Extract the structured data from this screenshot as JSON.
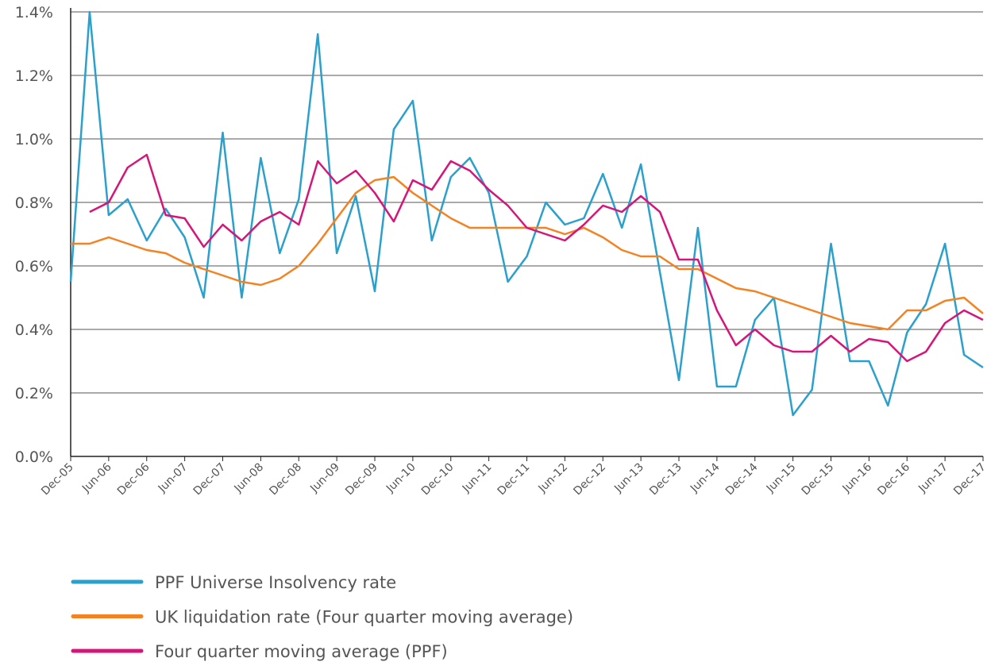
{
  "chart_data": {
    "type": "line",
    "categories": [
      "Dec-05",
      null,
      "Jun-06",
      null,
      "Dec-06",
      null,
      "Jun-07",
      null,
      "Dec-07",
      null,
      "Jun-08",
      null,
      "Dec-08",
      null,
      "Jun-09",
      null,
      "Dec-09",
      null,
      "Jun-10",
      null,
      "Dec-10",
      null,
      "Jun-11",
      null,
      "Dec-11",
      null,
      "Jun-12",
      null,
      "Dec-12",
      null,
      "Jun-13",
      null,
      "Dec-13",
      null,
      "Jun-14",
      null,
      "Dec-14",
      null,
      "Jun-15",
      null,
      "Dec-15",
      null,
      "Jun-16",
      null,
      "Dec-16",
      null,
      "Jun-17",
      null,
      "Dec-17"
    ],
    "series": [
      {
        "name": "PPF Universe Insolvency rate",
        "color": "#2aa0cc",
        "values": [
          0.55,
          1.4,
          0.76,
          0.81,
          0.68,
          0.78,
          0.69,
          0.5,
          1.02,
          0.5,
          0.94,
          0.64,
          0.81,
          1.33,
          0.64,
          0.82,
          0.52,
          1.03,
          1.12,
          0.68,
          0.88,
          0.94,
          0.83,
          0.55,
          0.63,
          0.8,
          0.73,
          0.75,
          0.89,
          0.72,
          0.92,
          0.58,
          0.24,
          0.72,
          0.22,
          0.22,
          0.43,
          0.5,
          0.13,
          0.21,
          0.67,
          0.3,
          0.3,
          0.16,
          0.39,
          0.48,
          0.67,
          0.32,
          0.28
        ]
      },
      {
        "name": "UK liquidation rate (Four quarter moving average)",
        "color": "#f58220",
        "values": [
          0.67,
          0.67,
          0.69,
          0.67,
          0.65,
          0.64,
          0.61,
          0.59,
          0.57,
          0.55,
          0.54,
          0.56,
          0.6,
          0.67,
          0.75,
          0.83,
          0.87,
          0.88,
          0.83,
          0.79,
          0.75,
          0.72,
          0.72,
          0.72,
          0.72,
          0.72,
          0.7,
          0.72,
          0.69,
          0.65,
          0.63,
          0.63,
          0.59,
          0.59,
          0.56,
          0.53,
          0.52,
          0.5,
          0.48,
          0.46,
          0.44,
          0.42,
          0.41,
          0.4,
          0.46,
          0.46,
          0.49,
          0.5,
          0.45
        ]
      },
      {
        "name": "Four quarter moving average (PPF)",
        "color": "#d6157a",
        "values": [
          null,
          0.77,
          0.8,
          0.91,
          0.95,
          0.76,
          0.75,
          0.66,
          0.73,
          0.68,
          0.74,
          0.77,
          0.73,
          0.93,
          0.86,
          0.9,
          0.83,
          0.74,
          0.87,
          0.84,
          0.93,
          0.9,
          0.84,
          0.79,
          0.72,
          0.7,
          0.68,
          0.73,
          0.79,
          0.77,
          0.82,
          0.77,
          0.62,
          0.62,
          0.46,
          0.35,
          0.4,
          0.35,
          0.33,
          0.33,
          0.38,
          0.33,
          0.37,
          0.36,
          0.3,
          0.33,
          0.42,
          0.46,
          0.43
        ]
      }
    ],
    "ylim": [
      0,
      1.4
    ],
    "yticks": [
      {
        "value": 0,
        "label": "0.0%"
      },
      {
        "value": 0.2,
        "label": "0.2%"
      },
      {
        "value": 0.4,
        "label": "0.4%"
      },
      {
        "value": 0.6,
        "label": "0.6%"
      },
      {
        "value": 0.8,
        "label": "0.8%"
      },
      {
        "value": 1.0,
        "label": "1.0%"
      },
      {
        "value": 1.2,
        "label": "1.2%"
      },
      {
        "value": 1.4,
        "label": "1.4%"
      }
    ],
    "grid": true,
    "legend": "bottom"
  }
}
